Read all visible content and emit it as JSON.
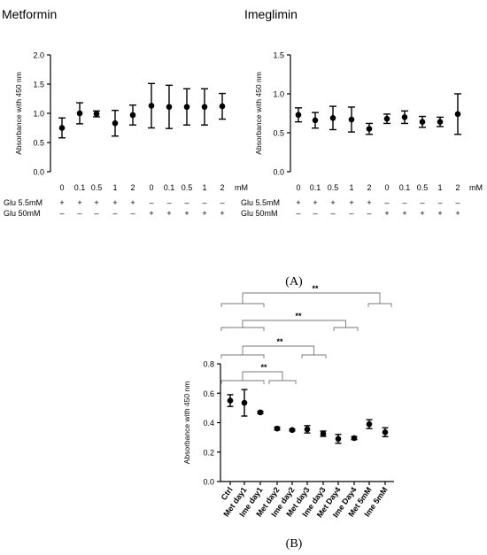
{
  "panels": {
    "a": {
      "label": "(A)",
      "charts": [
        {
          "title": "Metformin",
          "ylabel": "Absorbance with 450 nm",
          "ylim": [
            0,
            2.0
          ],
          "yticks": [
            "0.0",
            "0.5",
            "1.0",
            "1.5",
            "2.0"
          ],
          "unit": "mM",
          "xlabels": [
            "0",
            "0.1",
            "0.5",
            "1",
            "2",
            "0",
            "0.1",
            "0.5",
            "1",
            "2"
          ],
          "means": [
            0.75,
            1.0,
            0.99,
            0.83,
            0.97,
            1.13,
            1.11,
            1.11,
            1.11,
            1.12
          ],
          "err": [
            0.17,
            0.18,
            0.05,
            0.22,
            0.17,
            0.38,
            0.37,
            0.31,
            0.31,
            0.22
          ],
          "rows": [
            {
              "label": "Glu 5.5mM",
              "signs": [
                "+",
                "+",
                "+",
                "+",
                "+",
                "–",
                "–",
                "–",
                "–",
                "–"
              ]
            },
            {
              "label": "Glu 50mM",
              "signs": [
                "–",
                "–",
                "–",
                "–",
                "–",
                "+",
                "+",
                "+",
                "+",
                "+"
              ]
            }
          ]
        },
        {
          "title": "Imeglimin",
          "ylabel": "Absorbance with 450 nm",
          "ylim": [
            0,
            1.5
          ],
          "yticks": [
            "0.0",
            "0.5",
            "1.0",
            "1.5"
          ],
          "unit": "mM",
          "xlabels": [
            "0",
            "0.1",
            "0.5",
            "1",
            "2",
            "0",
            "0.1",
            "0.5",
            "1",
            "2"
          ],
          "means": [
            0.73,
            0.66,
            0.69,
            0.67,
            0.55,
            0.68,
            0.7,
            0.64,
            0.64,
            0.74
          ],
          "err": [
            0.09,
            0.1,
            0.15,
            0.16,
            0.07,
            0.06,
            0.08,
            0.07,
            0.06,
            0.26
          ],
          "rows": [
            {
              "label": "Glu 5.5mM",
              "signs": [
                "+",
                "+",
                "+",
                "+",
                "+",
                "–",
                "–",
                "–",
                "–",
                "–"
              ]
            },
            {
              "label": "Glu 50mM",
              "signs": [
                "–",
                "–",
                "–",
                "–",
                "–",
                "+",
                "+",
                "+",
                "+",
                "+"
              ]
            }
          ]
        }
      ]
    },
    "b": {
      "label": "(B)",
      "sig_label": "**"
    }
  },
  "chart_data": [
    {
      "type": "scatter",
      "title": "Metformin",
      "ylabel": "Absorbance with 450 nm",
      "ylim": [
        0,
        2.0
      ],
      "categories": [
        "0 (Glu 5.5mM)",
        "0.1 (Glu 5.5mM)",
        "0.5 (Glu 5.5mM)",
        "1 (Glu 5.5mM)",
        "2 (Glu 5.5mM)",
        "0 (Glu 50mM)",
        "0.1 (Glu 50mM)",
        "0.5 (Glu 50mM)",
        "1 (Glu 50mM)",
        "2 (Glu 50mM)"
      ],
      "values": [
        0.75,
        1.0,
        0.99,
        0.83,
        0.97,
        1.13,
        1.11,
        1.11,
        1.11,
        1.12
      ],
      "error": [
        0.17,
        0.18,
        0.05,
        0.22,
        0.17,
        0.38,
        0.37,
        0.31,
        0.31,
        0.22
      ]
    },
    {
      "type": "scatter",
      "title": "Imeglimin",
      "ylabel": "Absorbance with 450 nm",
      "ylim": [
        0,
        1.5
      ],
      "categories": [
        "0 (Glu 5.5mM)",
        "0.1 (Glu 5.5mM)",
        "0.5 (Glu 5.5mM)",
        "1 (Glu 5.5mM)",
        "2 (Glu 5.5mM)",
        "0 (Glu 50mM)",
        "0.1 (Glu 50mM)",
        "0.5 (Glu 50mM)",
        "1 (Glu 50mM)",
        "2 (Glu 50mM)"
      ],
      "values": [
        0.73,
        0.66,
        0.69,
        0.67,
        0.55,
        0.68,
        0.7,
        0.64,
        0.64,
        0.74
      ],
      "error": [
        0.09,
        0.1,
        0.15,
        0.16,
        0.07,
        0.06,
        0.08,
        0.07,
        0.06,
        0.26
      ]
    },
    {
      "type": "scatter",
      "ylabel": "Absorbance with 450 nm",
      "ylim": [
        0,
        0.8
      ],
      "yticks": [
        "0.0",
        "0.2",
        "0.4",
        "0.6",
        "0.8"
      ],
      "categories": [
        "Ctrl",
        "Met day1",
        "Ime day1",
        "Met day2",
        "Ime day2",
        "Met day3",
        "Ime day3",
        "Met Day4",
        "Ime Day4",
        "Met 5mM",
        "Ime 5mM"
      ],
      "values": [
        0.55,
        0.535,
        0.47,
        0.36,
        0.35,
        0.355,
        0.325,
        0.29,
        0.295,
        0.39,
        0.335
      ],
      "error": [
        0.04,
        0.09,
        0.008,
        0.01,
        0.006,
        0.025,
        0.018,
        0.03,
        0.01,
        0.03,
        0.03
      ],
      "significance": [
        {
          "label": "**",
          "groups": [
            [
              0,
              1,
              2
            ],
            [
              9,
              10
            ]
          ]
        },
        {
          "label": "**",
          "groups": [
            [
              0,
              1,
              2
            ],
            [
              7,
              8
            ]
          ]
        },
        {
          "label": "**",
          "groups": [
            [
              0,
              1,
              2
            ],
            [
              5,
              6
            ]
          ]
        },
        {
          "label": "**",
          "groups": [
            [
              0,
              1,
              2
            ],
            [
              3,
              4
            ]
          ]
        }
      ]
    }
  ]
}
